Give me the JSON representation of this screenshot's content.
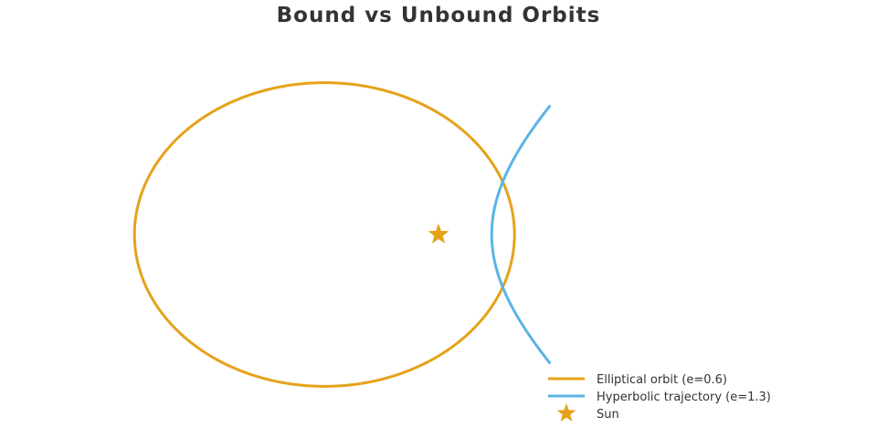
{
  "title": "Bound vs Unbound Orbits",
  "colors": {
    "ellipse": "#E5A21A",
    "hyperbola": "#5AB4E5",
    "sun": "#E5A21A",
    "text": "#333333"
  },
  "chart_data": {
    "type": "line",
    "title": "Bound vs Unbound Orbits",
    "xlabel": "",
    "ylabel": "",
    "grid": false,
    "axes_visible": false,
    "legend_position": "bottom-right",
    "series": [
      {
        "name": "Elliptical orbit (e=0.6)",
        "kind": "ellipse",
        "semi_major_axis": 1,
        "eccentricity": 0.6,
        "focus": [
          0,
          0
        ]
      },
      {
        "name": "Hyperbolic trajectory (e=1.3)",
        "kind": "hyperbola",
        "eccentricity": 1.3,
        "periapsis_distance": 0.28,
        "focus": [
          0,
          0
        ],
        "y_range": [
          -0.68,
          0.68
        ]
      },
      {
        "name": "Sun",
        "kind": "point",
        "marker": "star",
        "x": 0,
        "y": 0
      }
    ]
  }
}
